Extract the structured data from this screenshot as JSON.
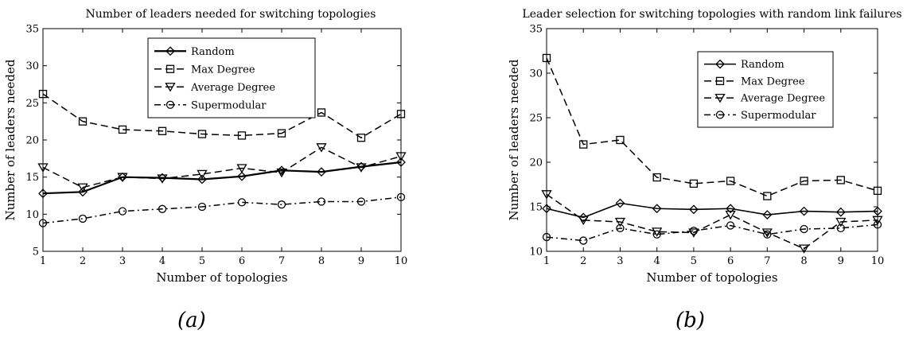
{
  "panels": [
    {
      "caption": "(a)"
    },
    {
      "caption": "(b)"
    }
  ],
  "chart_data": [
    {
      "type": "line",
      "title": "Number of leaders needed for switching topologies",
      "xlabel": "Number of topologies",
      "ylabel": "Number of leaders needed",
      "xlim": [
        1,
        10
      ],
      "ylim": [
        5,
        35
      ],
      "xticks": [
        1,
        2,
        3,
        4,
        5,
        6,
        7,
        8,
        9,
        10
      ],
      "yticks": [
        5,
        10,
        15,
        20,
        25,
        30,
        35
      ],
      "grid": false,
      "legend_position": "top-center",
      "x": [
        1,
        2,
        3,
        4,
        5,
        6,
        7,
        8,
        9,
        10
      ],
      "series": [
        {
          "name": "Random",
          "marker": "diamond",
          "dash": "solid",
          "stroke_width": 2.2,
          "values": [
            12.8,
            13.0,
            15.0,
            14.9,
            14.7,
            15.1,
            15.9,
            15.7,
            16.4,
            17.0
          ]
        },
        {
          "name": "Max Degree",
          "marker": "square",
          "dash": "dashed",
          "stroke_width": 1.5,
          "values": [
            26.2,
            22.5,
            21.4,
            21.2,
            20.8,
            20.6,
            20.9,
            23.7,
            20.3,
            23.5
          ]
        },
        {
          "name": "Average Degree",
          "marker": "triangle-down",
          "dash": "dashed",
          "stroke_width": 1.5,
          "values": [
            16.3,
            13.6,
            15.0,
            14.8,
            15.4,
            16.2,
            15.6,
            19.0,
            16.3,
            17.8
          ]
        },
        {
          "name": "Supermodular",
          "marker": "circle",
          "dash": "dashdot",
          "stroke_width": 1.5,
          "values": [
            8.8,
            9.4,
            10.4,
            10.7,
            11.0,
            11.6,
            11.3,
            11.7,
            11.7,
            12.3
          ]
        }
      ]
    },
    {
      "type": "line",
      "title": "Leader selection for switching topologies with random link failures",
      "xlabel": "Number of topologies",
      "ylabel": "Number of leaders needed",
      "xlim": [
        1,
        10
      ],
      "ylim": [
        10,
        35
      ],
      "xticks": [
        1,
        2,
        3,
        4,
        5,
        6,
        7,
        8,
        9,
        10
      ],
      "yticks": [
        10,
        15,
        20,
        25,
        30,
        35
      ],
      "grid": false,
      "legend_position": "top-right",
      "x": [
        1,
        2,
        3,
        4,
        5,
        6,
        7,
        8,
        9,
        10
      ],
      "series": [
        {
          "name": "Random",
          "marker": "diamond",
          "dash": "solid",
          "stroke_width": 1.6,
          "values": [
            14.8,
            13.8,
            15.4,
            14.8,
            14.7,
            14.8,
            14.1,
            14.5,
            14.4,
            14.5
          ]
        },
        {
          "name": "Max Degree",
          "marker": "square",
          "dash": "dashed",
          "stroke_width": 1.5,
          "values": [
            31.7,
            22.0,
            22.5,
            18.3,
            17.6,
            17.9,
            16.2,
            17.9,
            18.0,
            16.8
          ]
        },
        {
          "name": "Average Degree",
          "marker": "triangle-down",
          "dash": "dashed",
          "stroke_width": 1.5,
          "values": [
            16.4,
            13.5,
            13.3,
            12.2,
            12.1,
            14.1,
            12.1,
            10.3,
            13.3,
            13.5
          ]
        },
        {
          "name": "Supermodular",
          "marker": "circle",
          "dash": "dashdot",
          "stroke_width": 1.5,
          "values": [
            11.6,
            11.2,
            12.6,
            11.9,
            12.3,
            12.9,
            11.9,
            12.5,
            12.6,
            13.0
          ]
        }
      ]
    }
  ]
}
